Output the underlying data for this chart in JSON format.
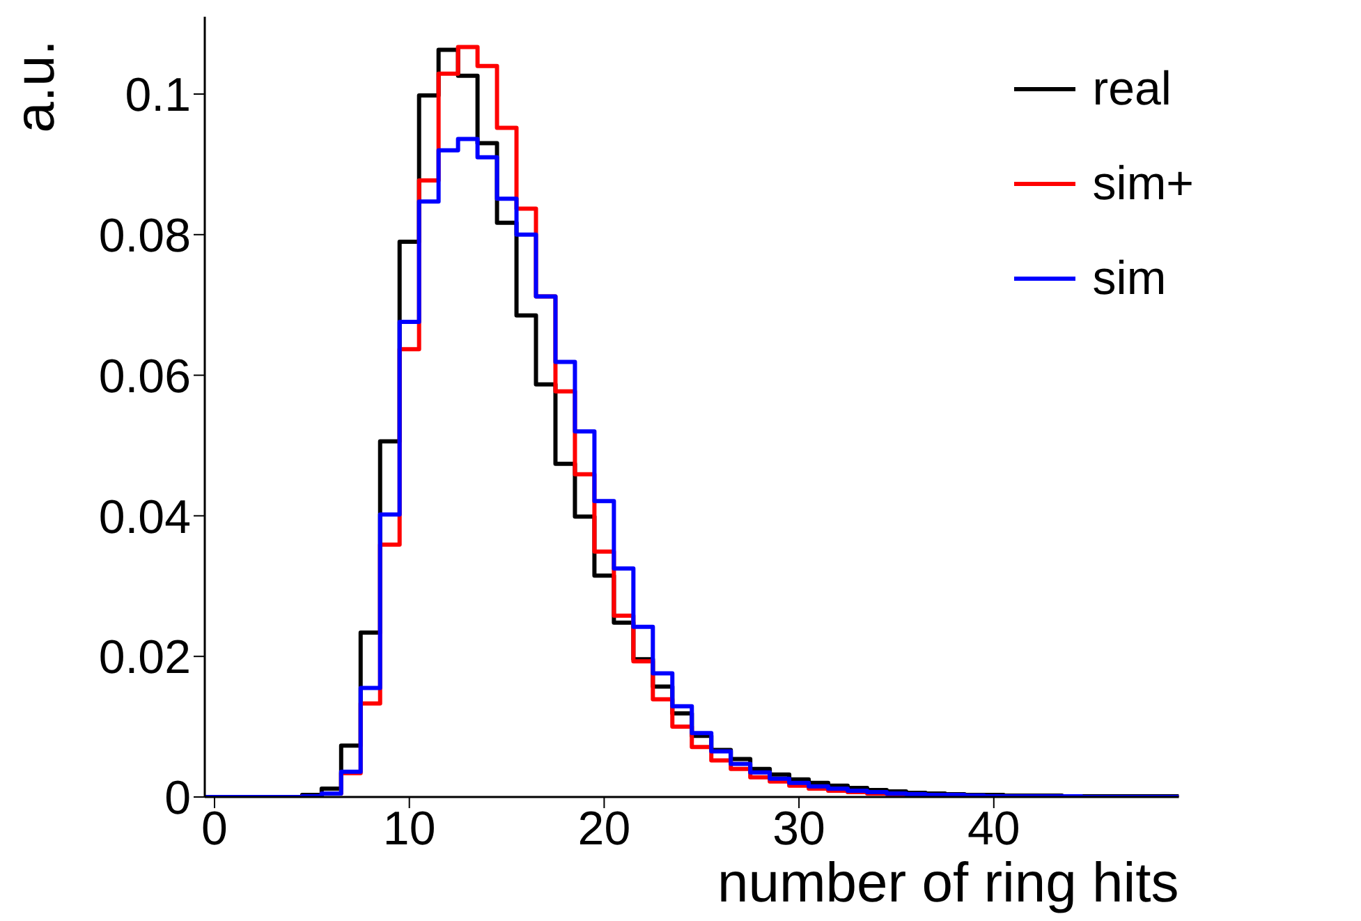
{
  "chart_data": {
    "type": "histogram",
    "xlabel": "number of ring hits",
    "ylabel": "a.u.",
    "bins": [
      -0.5,
      0.5,
      1.5,
      2.5,
      3.5,
      4.5,
      5.5,
      6.5,
      7.5,
      8.5,
      9.5,
      10.5,
      11.5,
      12.5,
      13.5,
      14.5,
      15.5,
      16.5,
      17.5,
      18.5,
      19.5,
      20.5,
      21.5,
      22.5,
      23.5,
      24.5,
      25.5,
      26.5,
      27.5,
      28.5,
      29.5,
      30.5,
      31.5,
      32.5,
      33.5,
      34.5,
      35.5,
      36.5,
      37.5,
      38.5,
      39.5,
      40.5,
      41.5,
      42.5,
      43.5,
      44.5,
      45.5,
      46.5,
      47.5,
      48.5,
      49.5
    ],
    "series": [
      {
        "name": "real",
        "color": "#000000",
        "values": [
          0,
          0,
          0,
          0,
          0,
          0.0003,
          0.0012,
          0.0073,
          0.0234,
          0.0506,
          0.079,
          0.0998,
          0.1063,
          0.1026,
          0.093,
          0.0817,
          0.0685,
          0.0587,
          0.0474,
          0.0399,
          0.0315,
          0.0248,
          0.0196,
          0.0157,
          0.0119,
          0.0087,
          0.0067,
          0.0054,
          0.004,
          0.0032,
          0.0025,
          0.002,
          0.0016,
          0.0013,
          0.001,
          0.0008,
          0.0006,
          0.0005,
          0.0004,
          0.0003,
          0.0003,
          0.0002,
          0.0002,
          0.0002,
          0.0001,
          0.0001,
          0.0001,
          0.0001,
          0.0001,
          0.0001
        ]
      },
      {
        "name": "sim+",
        "color": "#ff0000",
        "values": [
          0,
          0,
          0,
          0,
          0,
          0.0001,
          0.0005,
          0.0034,
          0.0133,
          0.0359,
          0.0637,
          0.0877,
          0.1029,
          0.1067,
          0.104,
          0.0952,
          0.0837,
          0.0712,
          0.0577,
          0.0459,
          0.0349,
          0.0258,
          0.0193,
          0.0139,
          0.01,
          0.0071,
          0.0052,
          0.004,
          0.0028,
          0.0022,
          0.0016,
          0.0012,
          0.0009,
          0.0007,
          0.0005,
          0.0004,
          0.0003,
          0.0002,
          0.0002,
          0.0001,
          0.0001,
          0.0001,
          0.0001,
          0,
          0,
          0,
          0,
          0,
          0,
          0
        ]
      },
      {
        "name": "sim",
        "color": "#0000ff",
        "values": [
          0,
          0,
          0,
          0,
          0,
          0.0001,
          0.0005,
          0.0036,
          0.0155,
          0.0402,
          0.0676,
          0.0847,
          0.092,
          0.0936,
          0.091,
          0.0851,
          0.08,
          0.0712,
          0.0619,
          0.052,
          0.0421,
          0.0325,
          0.0242,
          0.0176,
          0.0129,
          0.0091,
          0.0065,
          0.0047,
          0.0035,
          0.0026,
          0.002,
          0.0015,
          0.0012,
          0.0009,
          0.0007,
          0.0005,
          0.0004,
          0.0003,
          0.0003,
          0.0002,
          0.0001,
          0.0001,
          0.0001,
          0.0001,
          0.0001,
          0,
          0,
          0,
          0,
          0
        ]
      }
    ],
    "xlim": [
      -0.5,
      49.5
    ],
    "xticks": [
      0,
      10,
      20,
      30,
      40
    ],
    "ylim": [
      0,
      0.111
    ],
    "yticks": [
      0,
      0.02,
      0.04,
      0.06,
      0.08,
      0.1
    ],
    "grid": false,
    "legend": "top right",
    "line_style": "solid",
    "marker": "none"
  }
}
